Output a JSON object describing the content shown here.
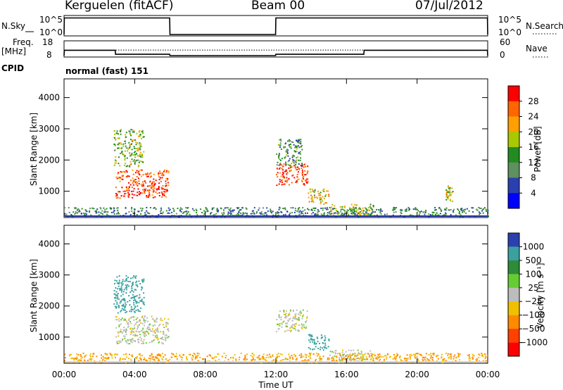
{
  "header": {
    "station": "Kerguelen (fitACF)",
    "beam": "Beam 00",
    "date": "07/Jul/2012"
  },
  "panels": {
    "nsky": {
      "label": "N.Sky",
      "left_ticks": [
        "10^5",
        "10^0"
      ],
      "right_ticks": [
        "10^5",
        "10^0"
      ],
      "right_label": "N.Search"
    },
    "freq": {
      "label_line1": "Freq.",
      "label_line2": "[MHz]",
      "left_ticks": [
        "18",
        "8"
      ],
      "right_ticks": [
        "60",
        "0"
      ],
      "right_label": "Nave"
    },
    "cpid": {
      "label": "CPID",
      "value": "normal (fast) 151"
    }
  },
  "power_colorbar": {
    "label": "Power [dB]",
    "ticks": [
      "28",
      "24",
      "20",
      "16",
      "12",
      "8",
      "4"
    ],
    "colors": [
      "#ff0000",
      "#ff6600",
      "#ffa000",
      "#a8c800",
      "#228b22",
      "#5f9060",
      "#2a40b0",
      "#0000ff"
    ]
  },
  "velocity_colorbar": {
    "label": "Velocity [m s⁻¹]",
    "ticks": [
      "1000",
      "500",
      "100",
      "25",
      "−25",
      "−100",
      "−500",
      "−1000"
    ],
    "colors": [
      "#2a40b0",
      "#3aa0a0",
      "#2e8b3a",
      "#66cc33",
      "#bcbcbc",
      "#f0c000",
      "#ff8a00",
      "#ff4000",
      "#ff0000"
    ]
  },
  "chart_data": [
    {
      "type": "line",
      "title": "N.Sky",
      "y_scale": "log",
      "ylim": [
        1,
        100000
      ],
      "series": [
        {
          "name": "N.Sky",
          "x": [
            "00:00",
            "00:01",
            "05:59",
            "06:00",
            "11:59",
            "12:00",
            "23:59",
            "24:00"
          ],
          "values": [
            1,
            50000,
            50000,
            1,
            1,
            50000,
            50000,
            1
          ]
        }
      ]
    },
    {
      "type": "line",
      "title": "Freq. [MHz]",
      "ylim": [
        8,
        18
      ],
      "y2_range": [
        0,
        60
      ],
      "series": [
        {
          "name": "Freq.",
          "x": [
            "00:00",
            "00:01",
            "02:54",
            "02:55",
            "05:59",
            "06:00",
            "11:59",
            "12:00",
            "16:59",
            "17:00",
            "23:59",
            "24:00"
          ],
          "values": [
            8,
            12,
            12,
            9,
            9,
            8,
            8,
            9,
            9,
            12,
            12,
            8
          ]
        },
        {
          "name": "Nave",
          "x": [
            "00:00",
            "24:00"
          ],
          "values": [
            25,
            25
          ]
        }
      ]
    },
    {
      "type": "heatmap",
      "title": "Power [dB]",
      "ylabel": "Slant Range [km]",
      "xlabel": "Time UT",
      "x_ticks": [
        "00:00",
        "04:00",
        "08:00",
        "12:00",
        "16:00",
        "20:00",
        "00:00"
      ],
      "y_ticks": [
        "1000",
        "2000",
        "3000",
        "4000"
      ],
      "xlim_hours": [
        0,
        24
      ],
      "ylim_km": [
        180,
        4600
      ],
      "color_ticks": [
        4,
        8,
        12,
        16,
        20,
        24,
        28
      ],
      "regions": [
        {
          "t_start": 2.9,
          "t_end": 5.9,
          "range_from_km": 800,
          "range_to_km": 1700,
          "power_db": 26
        },
        {
          "t_start": 2.8,
          "t_end": 4.5,
          "range_from_km": 1800,
          "range_to_km": 3000,
          "power_db": 14
        },
        {
          "t_start": 12.0,
          "t_end": 13.8,
          "range_from_km": 1200,
          "range_to_km": 1900,
          "power_db": 26
        },
        {
          "t_start": 12.0,
          "t_end": 13.5,
          "range_from_km": 1800,
          "range_to_km": 2700,
          "power_db": 10
        },
        {
          "t_start": 13.8,
          "t_end": 15.0,
          "range_from_km": 600,
          "range_to_km": 1100,
          "power_db": 18
        },
        {
          "t_start": 15.0,
          "t_end": 17.5,
          "range_from_km": 250,
          "range_to_km": 600,
          "power_db": 16
        },
        {
          "t_start": 21.6,
          "t_end": 22.0,
          "range_from_km": 700,
          "range_to_km": 1200,
          "power_db": 18
        },
        {
          "t_start": 0.0,
          "t_end": 24.0,
          "range_from_km": 200,
          "range_to_km": 500,
          "power_db": 8
        }
      ]
    },
    {
      "type": "heatmap",
      "title": "Velocity [m s⁻¹]",
      "ylabel": "Slant Range [km]",
      "xlabel": "Time UT",
      "x_ticks": [
        "00:00",
        "04:00",
        "08:00",
        "12:00",
        "16:00",
        "20:00",
        "00:00"
      ],
      "y_ticks": [
        "1000",
        "2000",
        "3000",
        "4000"
      ],
      "xlim_hours": [
        0,
        24
      ],
      "ylim_km": [
        180,
        4600
      ],
      "color_ticks": [
        1000,
        500,
        100,
        25,
        -25,
        -100,
        -500,
        -1000
      ],
      "regions": [
        {
          "t_start": 2.9,
          "t_end": 5.9,
          "range_from_km": 800,
          "range_to_km": 1700,
          "velocity_mps": 0
        },
        {
          "t_start": 2.8,
          "t_end": 4.5,
          "range_from_km": 1800,
          "range_to_km": 3000,
          "velocity_mps": 150
        },
        {
          "t_start": 12.0,
          "t_end": 13.8,
          "range_from_km": 1200,
          "range_to_km": 1900,
          "velocity_mps": 0
        },
        {
          "t_start": 13.8,
          "t_end": 15.0,
          "range_from_km": 600,
          "range_to_km": 1100,
          "velocity_mps": 150
        },
        {
          "t_start": 15.0,
          "t_end": 17.5,
          "range_from_km": 250,
          "range_to_km": 600,
          "velocity_mps": 0
        },
        {
          "t_start": 0.0,
          "t_end": 24.0,
          "range_from_km": 200,
          "range_to_km": 500,
          "velocity_mps": -100
        }
      ]
    }
  ],
  "axis": {
    "xlabel": "Time UT",
    "ylabel": "Slant Range [km]",
    "x_ticks": [
      "00:00",
      "04:00",
      "08:00",
      "12:00",
      "16:00",
      "20:00",
      "00:00"
    ],
    "y_ticks": [
      "1000",
      "2000",
      "3000",
      "4000"
    ]
  }
}
